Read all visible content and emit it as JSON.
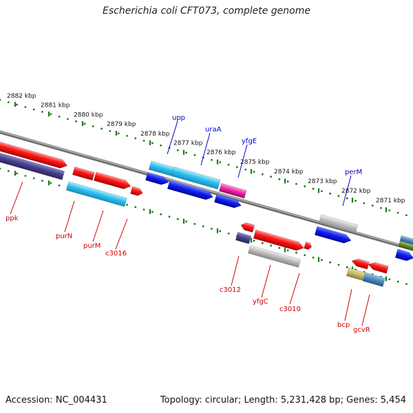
{
  "title": "Escherichia coli CFT073, complete genome",
  "footer": {
    "accession": "Accession: NC_004431",
    "summary": "Topology: circular; Length: 5,231,428 bp; Genes: 5,454"
  },
  "colors": {
    "forward_label": "#0000cc",
    "reverse_label": "#cc0000",
    "tick": "#1a7a1a",
    "backbone": "#8a8a8a"
  },
  "kbp_labels": [
    "2882 kbp",
    "2881 kbp",
    "2880 kbp",
    "2879 kbp",
    "2878 kbp",
    "2877 kbp",
    "2876 kbp",
    "2875 kbp",
    "2874 kbp",
    "2873 kbp",
    "2872 kbp",
    "2871 kbp"
  ],
  "forward_gene_labels": [
    "upp",
    "uraA",
    "yfgE",
    "perM"
  ],
  "reverse_gene_labels": [
    "ppk",
    "purN",
    "purM",
    "c3016",
    "c3012",
    "yfgC",
    "c3010",
    "bcp",
    "gcvR"
  ]
}
